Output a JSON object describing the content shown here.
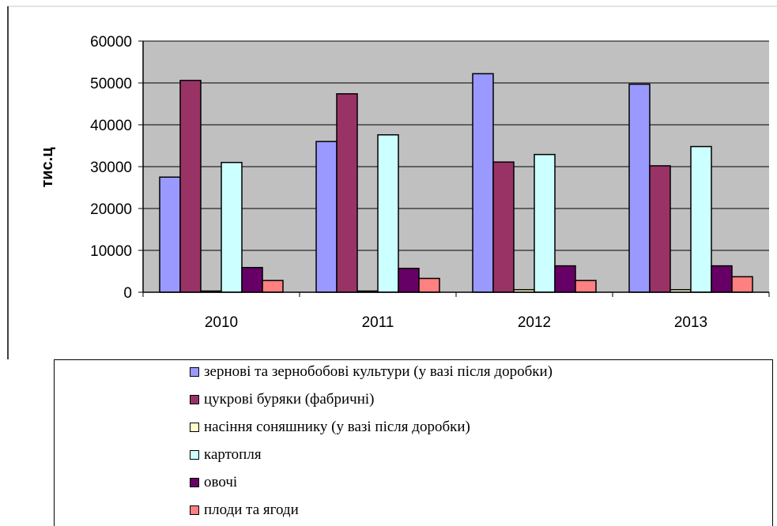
{
  "colors": {
    "plot_bg": "#c0c0c0",
    "grid": "#000000",
    "series": [
      "#9999ff",
      "#993366",
      "#ffffcc",
      "#ccffff",
      "#660066",
      "#ff8080"
    ]
  },
  "chart_data": {
    "type": "bar",
    "ylabel": "тис.ц",
    "xlabel": "",
    "ylim": [
      0,
      60000
    ],
    "yticks": [
      0,
      10000,
      20000,
      30000,
      40000,
      50000,
      60000
    ],
    "categories": [
      "2010",
      "2011",
      "2012",
      "2013"
    ],
    "grid": true,
    "legend_position": "bottom",
    "series": [
      {
        "name": "зернові та зернобобові культури (у вазі після доробки)",
        "values": [
          27500,
          36000,
          52200,
          49700
        ]
      },
      {
        "name": "цукрові буряки (фабричні)",
        "values": [
          50600,
          47400,
          31100,
          30200
        ]
      },
      {
        "name": "насіння соняшнику (у вазі після доробки)",
        "values": [
          100,
          100,
          600,
          600
        ]
      },
      {
        "name": "картопля",
        "values": [
          31000,
          37600,
          32900,
          34800
        ]
      },
      {
        "name": "овочі",
        "values": [
          5900,
          5700,
          6300,
          6300
        ]
      },
      {
        "name": "плоди та ягоди",
        "values": [
          2800,
          3300,
          2800,
          3700
        ]
      }
    ]
  }
}
